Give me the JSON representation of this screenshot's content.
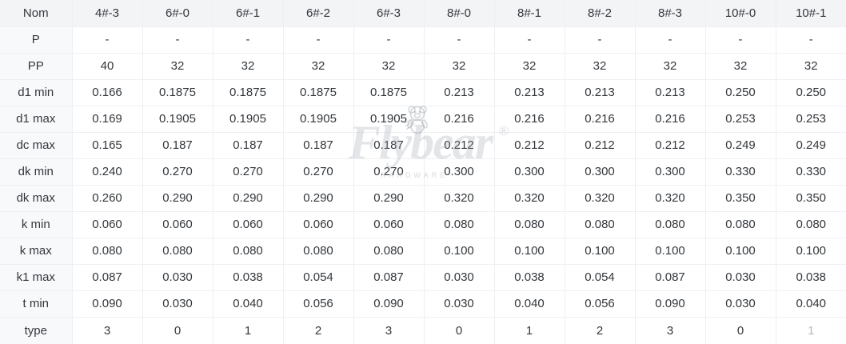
{
  "table": {
    "columns": [
      "Nom",
      "4#-3",
      "6#-0",
      "6#-1",
      "6#-2",
      "6#-3",
      "8#-0",
      "8#-1",
      "8#-2",
      "8#-3",
      "10#-0",
      "10#-1"
    ],
    "rows": [
      {
        "label": "P",
        "values": [
          "-",
          "-",
          "-",
          "-",
          "-",
          "-",
          "-",
          "-",
          "-",
          "-",
          "-"
        ]
      },
      {
        "label": "PP",
        "values": [
          "40",
          "32",
          "32",
          "32",
          "32",
          "32",
          "32",
          "32",
          "32",
          "32",
          "32"
        ]
      },
      {
        "label": "d1 min",
        "values": [
          "0.166",
          "0.1875",
          "0.1875",
          "0.1875",
          "0.1875",
          "0.213",
          "0.213",
          "0.213",
          "0.213",
          "0.250",
          "0.250"
        ]
      },
      {
        "label": "d1 max",
        "values": [
          "0.169",
          "0.1905",
          "0.1905",
          "0.1905",
          "0.1905",
          "0.216",
          "0.216",
          "0.216",
          "0.216",
          "0.253",
          "0.253"
        ]
      },
      {
        "label": "dc max",
        "values": [
          "0.165",
          "0.187",
          "0.187",
          "0.187",
          "0.187",
          "0.212",
          "0.212",
          "0.212",
          "0.212",
          "0.249",
          "0.249"
        ]
      },
      {
        "label": "dk min",
        "values": [
          "0.240",
          "0.270",
          "0.270",
          "0.270",
          "0.270",
          "0.300",
          "0.300",
          "0.300",
          "0.300",
          "0.330",
          "0.330"
        ]
      },
      {
        "label": "dk max",
        "values": [
          "0.260",
          "0.290",
          "0.290",
          "0.290",
          "0.290",
          "0.320",
          "0.320",
          "0.320",
          "0.320",
          "0.350",
          "0.350"
        ]
      },
      {
        "label": "k min",
        "values": [
          "0.060",
          "0.060",
          "0.060",
          "0.060",
          "0.060",
          "0.080",
          "0.080",
          "0.080",
          "0.080",
          "0.080",
          "0.080"
        ]
      },
      {
        "label": "k max",
        "values": [
          "0.080",
          "0.080",
          "0.080",
          "0.080",
          "0.080",
          "0.100",
          "0.100",
          "0.100",
          "0.100",
          "0.100",
          "0.100"
        ]
      },
      {
        "label": "k1 max",
        "values": [
          "0.087",
          "0.030",
          "0.038",
          "0.054",
          "0.087",
          "0.030",
          "0.038",
          "0.054",
          "0.087",
          "0.030",
          "0.038"
        ]
      },
      {
        "label": "t min",
        "values": [
          "0.090",
          "0.030",
          "0.040",
          "0.056",
          "0.090",
          "0.030",
          "0.040",
          "0.056",
          "0.090",
          "0.030",
          "0.040"
        ]
      },
      {
        "label": "type",
        "values": [
          "3",
          "0",
          "1",
          "2",
          "3",
          "0",
          "1",
          "2",
          "3",
          "0",
          "1"
        ]
      }
    ],
    "partial_cell": {
      "row_label": "type",
      "column": "10#-1"
    }
  },
  "colors": {
    "header_bg": "#f3f4f6",
    "label_col_bg": "#f8f9fb",
    "border": "#edeff2",
    "text": "#33373c"
  },
  "watermark": {
    "brand": "Flybear",
    "registered": "®",
    "subtitle": "HARDWARE",
    "logo": "bear-with-wing-icon"
  }
}
